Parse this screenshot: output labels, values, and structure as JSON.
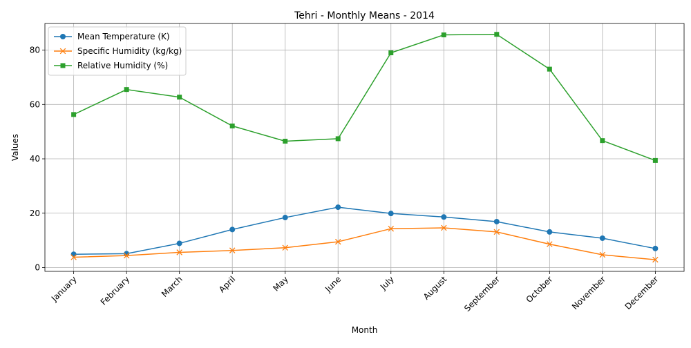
{
  "chart_data": {
    "type": "line",
    "title": "Tehri - Monthly Means - 2014",
    "xlabel": "Month",
    "ylabel": "Values",
    "categories": [
      "January",
      "February",
      "March",
      "April",
      "May",
      "June",
      "July",
      "August",
      "September",
      "October",
      "November",
      "December"
    ],
    "ylim": [
      -1.4,
      89.8
    ],
    "yticks": [
      0,
      20,
      40,
      60,
      80
    ],
    "grid": true,
    "legend_position": "upper-left",
    "series": [
      {
        "name": "Mean Temperature (K)",
        "color": "#1f77b4",
        "marker": "circle",
        "values": [
          4.9,
          5.1,
          8.9,
          14.0,
          18.4,
          22.2,
          19.9,
          18.6,
          16.9,
          13.1,
          10.8,
          7.0
        ]
      },
      {
        "name": "Specific Humidity (kg/kg)",
        "color": "#ff7f0e",
        "marker": "x",
        "values": [
          3.8,
          4.4,
          5.6,
          6.3,
          7.3,
          9.5,
          14.3,
          14.6,
          13.1,
          8.6,
          4.7,
          2.9
        ]
      },
      {
        "name": "Relative Humidity (%)",
        "color": "#2ca02c",
        "marker": "square",
        "values": [
          56.3,
          65.5,
          62.7,
          52.1,
          46.5,
          47.4,
          79.0,
          85.6,
          85.8,
          73.0,
          46.7,
          39.4
        ]
      }
    ]
  }
}
